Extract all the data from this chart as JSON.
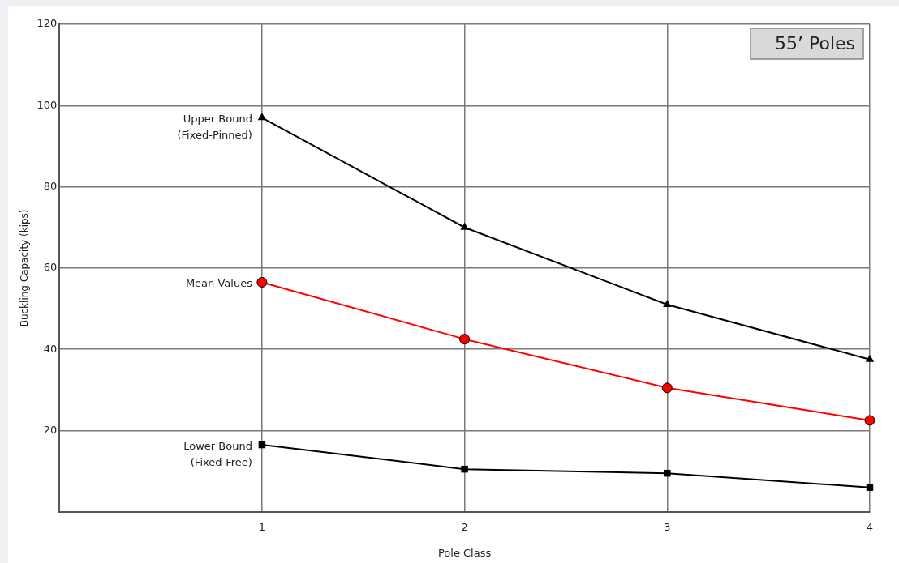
{
  "chart_data": {
    "type": "line",
    "title": "55’ Poles",
    "xlabel": "Pole Class",
    "ylabel": "Buckling Capacity (kips)",
    "x": [
      1,
      2,
      3,
      4
    ],
    "series": [
      {
        "name": "Upper Bound (Fixed-Pinned)",
        "color": "#000000",
        "marker": "triangle",
        "values": [
          97,
          70,
          51,
          37.5
        ]
      },
      {
        "name": "Mean Values",
        "color": "#ff0000",
        "marker": "circle",
        "values": [
          56.5,
          42.5,
          30.5,
          22.5
        ]
      },
      {
        "name": "Lower Bound (Fixed-Free)",
        "color": "#000000",
        "marker": "square",
        "values": [
          16.5,
          10.5,
          9.5,
          6
        ]
      }
    ],
    "xlim": [
      0,
      4
    ],
    "xticks": [
      1,
      2,
      3,
      4
    ],
    "ylim": [
      0,
      120
    ],
    "yticks": [
      20,
      40,
      60,
      80,
      100,
      120
    ],
    "grid": true,
    "legend": false
  }
}
